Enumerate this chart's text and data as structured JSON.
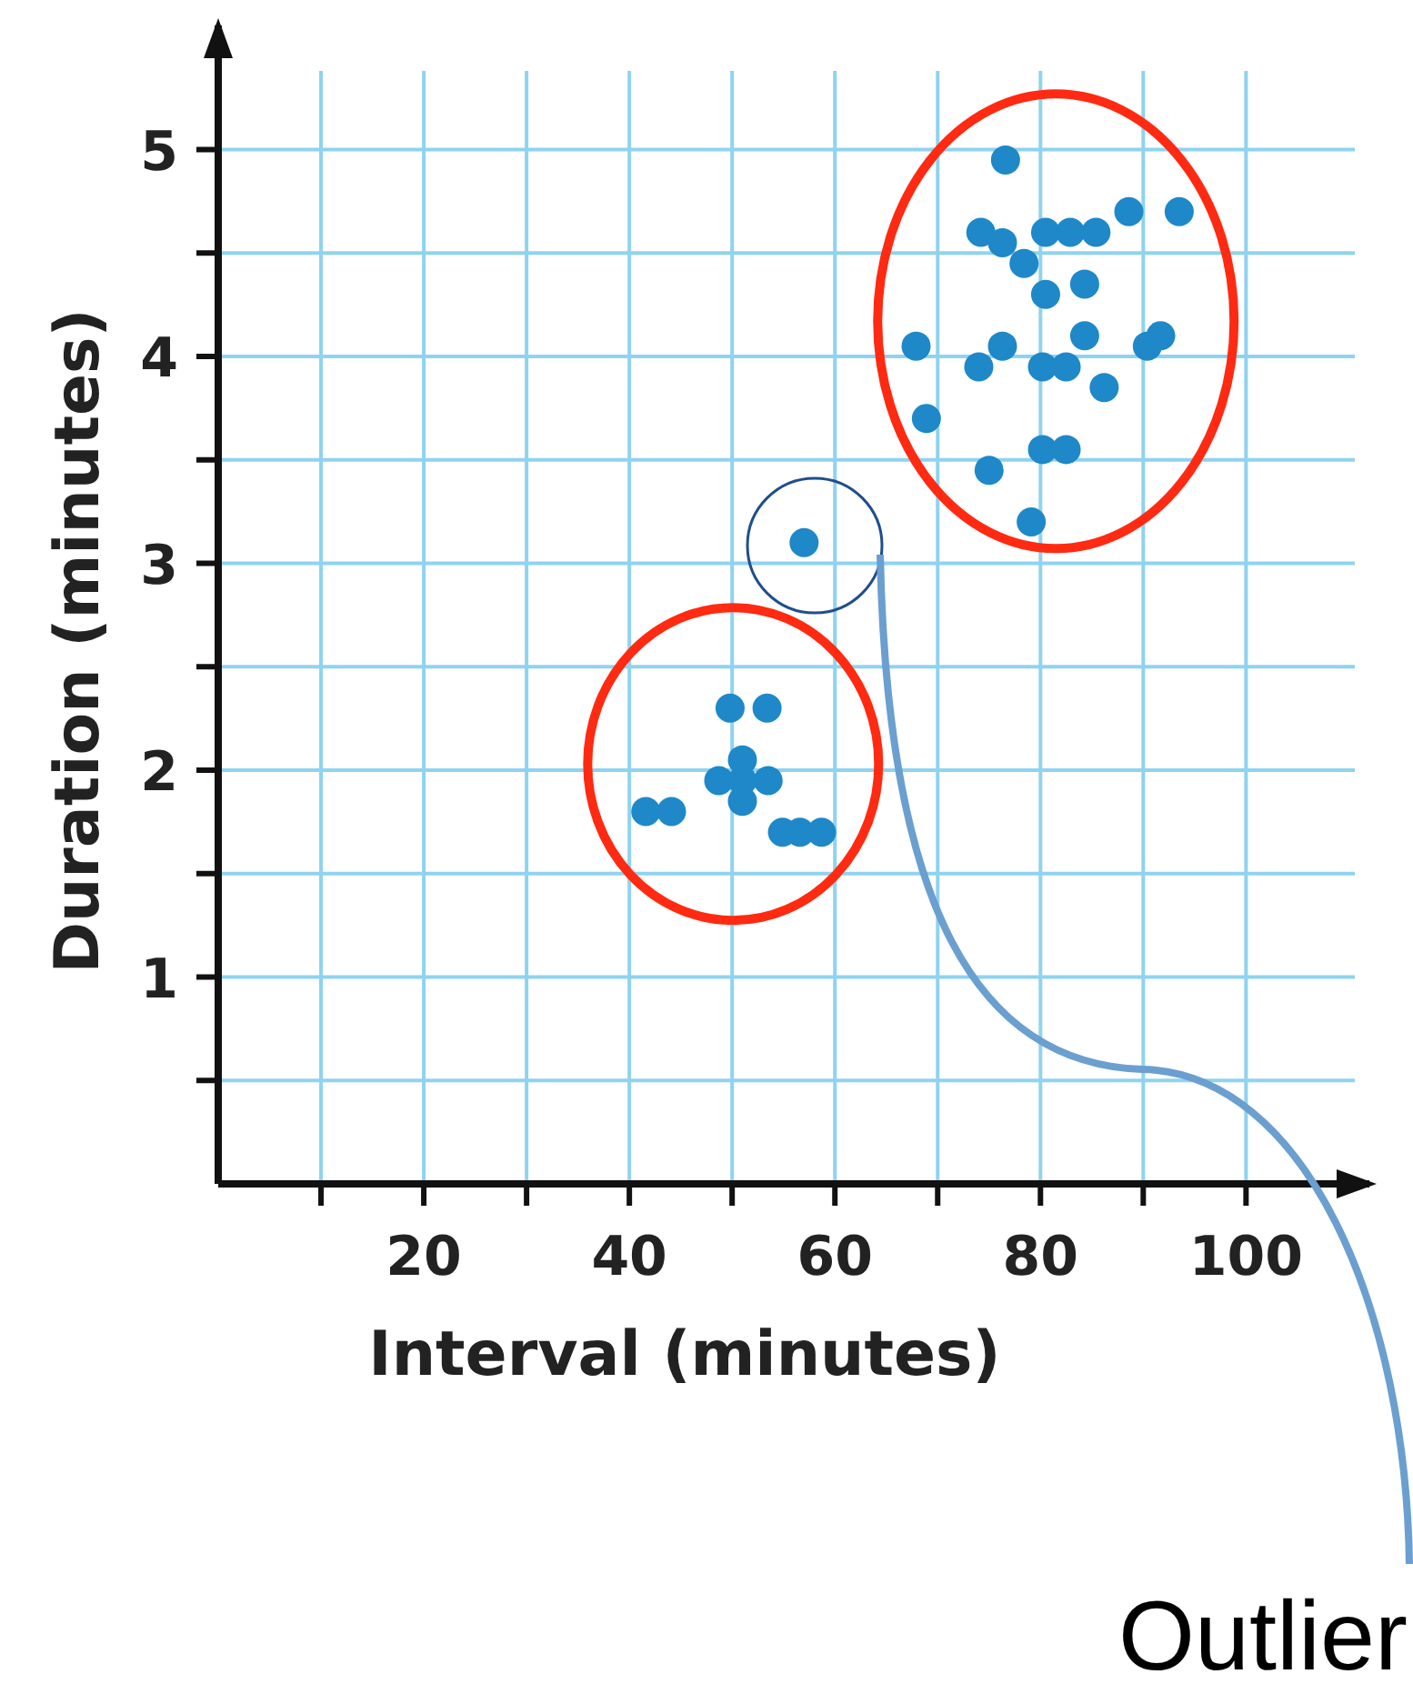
{
  "chart_data": {
    "type": "scatter",
    "xlabel": "Interval (minutes)",
    "ylabel": "Duration (minutes)",
    "x": [
      57,
      49.8,
      53.4,
      51,
      48.7,
      53.5,
      51,
      51,
      41.6,
      44.1,
      54.9,
      56.6,
      58.7,
      76.6,
      74.2,
      76.3,
      78.4,
      80.5,
      80.5,
      82.9,
      85.4,
      88.6,
      93.5,
      84.3,
      84.3,
      67.9,
      76.3,
      74,
      80.2,
      82.5,
      90.4,
      91.7,
      86.2,
      68.9,
      80.2,
      82.5,
      75,
      79.1
    ],
    "values": [
      3.1,
      2.3,
      2.3,
      2.05,
      1.95,
      1.95,
      1.95,
      1.85,
      1.8,
      1.8,
      1.7,
      1.7,
      1.7,
      4.95,
      4.6,
      4.55,
      4.45,
      4.3,
      4.6,
      4.6,
      4.6,
      4.7,
      4.7,
      4.35,
      4.1,
      4.05,
      4.05,
      3.95,
      3.95,
      3.95,
      4.05,
      4.1,
      3.85,
      3.7,
      3.55,
      3.55,
      3.45,
      3.2
    ],
    "color": "#1e88c8",
    "marker": "circle",
    "xlim": [
      0,
      112
    ],
    "ylim": [
      0,
      5.6
    ],
    "xticks": [
      {
        "value": 10,
        "label": null
      },
      20,
      {
        "value": 30,
        "label": null
      },
      40,
      {
        "value": 50,
        "label": null
      },
      60,
      {
        "value": 70,
        "label": null
      },
      80,
      {
        "value": 90,
        "label": null
      },
      100
    ],
    "yticks": [
      {
        "value": 0.5,
        "label": null
      },
      1,
      {
        "value": 1.5,
        "label": null
      },
      2,
      {
        "value": 2.5,
        "label": null
      },
      3,
      {
        "value": 3.5,
        "label": null
      },
      4,
      {
        "value": 4.5,
        "label": null
      },
      5
    ],
    "grid": true,
    "annotations": [
      "Outlier"
    ]
  }
}
